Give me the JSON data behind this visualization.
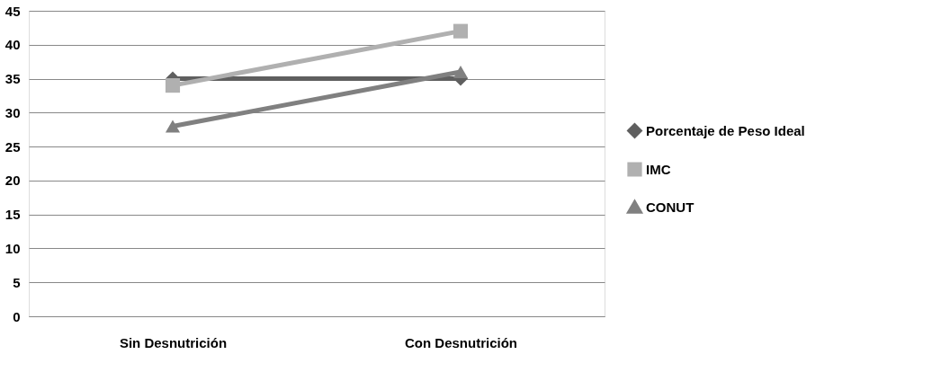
{
  "chart_data": {
    "type": "line",
    "categories": [
      "Sin Desnutrición",
      "Con Desnutrición"
    ],
    "series": [
      {
        "name": "Porcentaje de Peso Ideal",
        "color": "#5f5f5f",
        "marker": "diamond",
        "values": [
          35,
          35
        ]
      },
      {
        "name": "IMC",
        "color": "#b0b0b0",
        "marker": "square",
        "values": [
          34,
          42
        ]
      },
      {
        "name": "CONUT",
        "color": "#808080",
        "marker": "triangle",
        "values": [
          28,
          36
        ]
      }
    ],
    "ylim": [
      0,
      45
    ],
    "yticks": [
      0,
      5,
      10,
      15,
      20,
      25,
      30,
      35,
      40,
      45
    ],
    "grid": "y",
    "legend": "right"
  }
}
